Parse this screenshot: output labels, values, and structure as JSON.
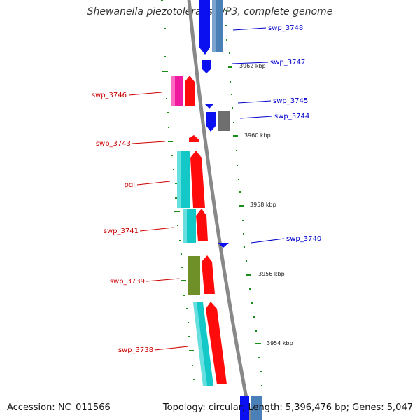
{
  "title": "Shewanella piezotolerans WP3, complete genome",
  "accession": "Accession: NC_011566",
  "summary": "Topology: circular; Length: 5,396,476 bp; Genes: 5,047",
  "colors": {
    "blue": "#0a10f0",
    "steelblue": "#4a7fb8",
    "red": "#ff0b0b",
    "cyan": "#14c8c8",
    "magenta": "#f01aa0",
    "olive": "#6f8f28",
    "gray": "#6e6e6e",
    "tick": "#1a8c1a",
    "backbone": "#888888"
  },
  "scale_labels": [
    "3962 kbp",
    "3960 kbp",
    "3958 kbp",
    "3956 kbp",
    "3954 kbp"
  ],
  "gene_labels": {
    "swp_3748": "swp_3748",
    "swp_3747": "swp_3747",
    "swp_3746": "swp_3746",
    "swp_3745": "swp_3745",
    "swp_3744": "swp_3744",
    "swp_3743": "swp_3743",
    "pgi": "pgi",
    "swp_3741": "swp_3741",
    "swp_3740": "swp_3740",
    "swp_3739": "swp_3739",
    "swp_3738": "swp_3738"
  }
}
